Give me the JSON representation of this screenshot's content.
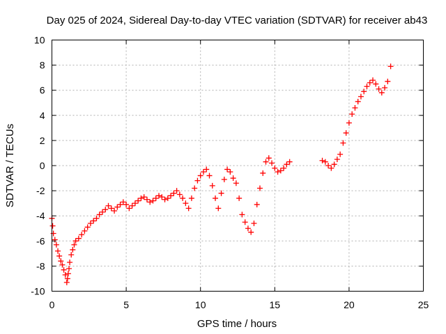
{
  "chart_data": {
    "type": "scatter",
    "title": "Day 025 of 2024, Sidereal Day-to-day VTEC variation (SDTVAR) for receiver ab43",
    "xlabel": "GPS time / hours",
    "ylabel": "SDTVAR / TECUs",
    "xlim": [
      0,
      25
    ],
    "ylim": [
      -10,
      10
    ],
    "xticks": [
      "0",
      "5",
      "10",
      "15",
      "20",
      "25"
    ],
    "yticks": [
      "-10",
      "-8",
      "-6",
      "-4",
      "-2",
      "0",
      "2",
      "4",
      "6",
      "8",
      "10"
    ],
    "grid": true,
    "marker": "+",
    "series": [
      {
        "color": "#ff0000",
        "x": [
          0.0,
          0.05,
          0.1,
          0.2,
          0.3,
          0.4,
          0.5,
          0.6,
          0.7,
          0.8,
          0.9,
          1.0,
          1.05,
          1.1,
          1.15,
          1.2,
          1.3,
          1.4,
          1.5,
          1.6,
          1.8,
          2.0,
          2.2,
          2.4,
          2.6,
          2.8,
          3.0,
          3.2,
          3.4,
          3.6,
          3.8,
          4.0,
          4.2,
          4.4,
          4.6,
          4.8,
          5.0,
          5.2,
          5.4,
          5.6,
          5.8,
          6.0,
          6.2,
          6.4,
          6.6,
          6.8,
          7.0,
          7.2,
          7.4,
          7.6,
          7.8,
          8.0,
          8.2,
          8.4,
          8.6,
          8.8,
          9.0,
          9.2,
          9.4,
          9.6,
          9.8,
          10.0,
          10.2,
          10.4,
          10.6,
          10.8,
          11.0,
          11.2,
          11.4,
          11.6,
          11.8,
          12.0,
          12.2,
          12.4,
          12.6,
          12.8,
          13.0,
          13.2,
          13.4,
          13.6,
          13.8,
          14.0,
          14.2,
          14.4,
          14.6,
          14.8,
          15.0,
          15.2,
          15.4,
          15.6,
          15.8,
          16.0,
          18.2,
          18.4,
          18.6,
          18.8,
          19.0,
          19.2,
          19.4,
          19.6,
          19.8,
          20.0,
          20.2,
          20.4,
          20.6,
          20.8,
          21.0,
          21.2,
          21.4,
          21.6,
          21.8,
          22.0,
          22.2,
          22.4,
          22.6,
          22.8
        ],
        "y": [
          -4.2,
          -4.8,
          -5.4,
          -5.9,
          -6.3,
          -6.8,
          -7.2,
          -7.6,
          -7.9,
          -8.3,
          -8.7,
          -9.3,
          -9.0,
          -8.6,
          -8.2,
          -7.7,
          -7.1,
          -6.7,
          -6.3,
          -6.0,
          -5.8,
          -5.5,
          -5.2,
          -4.9,
          -4.6,
          -4.4,
          -4.2,
          -3.9,
          -3.7,
          -3.5,
          -3.2,
          -3.4,
          -3.6,
          -3.3,
          -3.1,
          -2.9,
          -3.1,
          -3.4,
          -3.2,
          -3.0,
          -2.8,
          -2.6,
          -2.5,
          -2.7,
          -2.9,
          -2.8,
          -2.6,
          -2.4,
          -2.5,
          -2.7,
          -2.6,
          -2.4,
          -2.2,
          -2.0,
          -2.3,
          -2.6,
          -3.0,
          -3.4,
          -2.6,
          -1.8,
          -1.2,
          -0.8,
          -0.5,
          -0.3,
          -0.8,
          -1.6,
          -2.6,
          -3.4,
          -2.2,
          -1.1,
          -0.3,
          -0.5,
          -1.0,
          -1.4,
          -2.6,
          -3.9,
          -4.5,
          -5.0,
          -5.3,
          -4.6,
          -3.1,
          -1.8,
          -0.6,
          0.3,
          0.6,
          0.2,
          -0.2,
          -0.5,
          -0.4,
          -0.2,
          0.1,
          0.3,
          0.4,
          0.3,
          0.0,
          -0.2,
          0.1,
          0.5,
          0.9,
          1.8,
          2.6,
          3.4,
          4.1,
          4.6,
          5.1,
          5.5,
          5.9,
          6.3,
          6.6,
          6.8,
          6.5,
          6.1,
          5.8,
          6.2,
          6.7,
          7.9
        ]
      }
    ]
  }
}
